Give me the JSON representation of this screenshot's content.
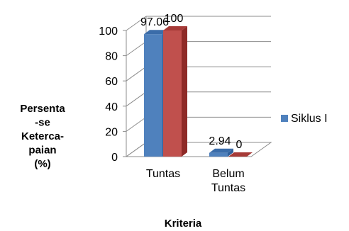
{
  "chart_data": {
    "type": "bar",
    "categories": [
      "Tuntas",
      "Belum Tuntas"
    ],
    "category_lines": [
      [
        "Tuntas"
      ],
      [
        "Belum",
        "Tuntas"
      ]
    ],
    "series": [
      {
        "name": "Siklus I",
        "values": [
          97.06,
          2.94
        ],
        "labels": [
          "97.06",
          "2.94"
        ],
        "color": "#4F81BD",
        "side": "#2F5F9A",
        "top": "#3A6CA9"
      },
      {
        "name": "",
        "values": [
          100,
          0
        ],
        "labels": [
          "100",
          "0"
        ],
        "color": "#C0504D",
        "side": "#8E2A27",
        "top": "#A63A37"
      }
    ],
    "ylim": [
      0,
      100
    ],
    "yticks": [
      "0",
      "20",
      "40",
      "60",
      "80",
      "100"
    ],
    "ylabel_lines": [
      "Persenta",
      "-se",
      "Keterca-",
      "paian",
      "(%)"
    ],
    "xlabel": "Kriteria",
    "legend": {
      "placement": "right",
      "entries": [
        "Siklus I"
      ]
    },
    "grid": true
  }
}
